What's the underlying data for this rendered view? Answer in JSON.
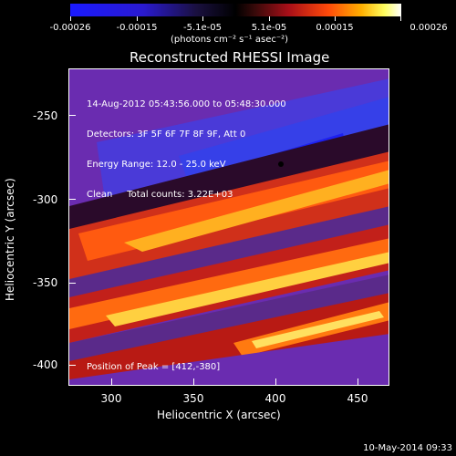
{
  "colorbar": {
    "ticks": [
      "-0.00026",
      "-0.00015",
      "-5.1e-05",
      "5.1e-05",
      "0.00015",
      "0.00026"
    ],
    "unit": "(photons cm⁻² s⁻¹ asec⁻²)"
  },
  "title": "Reconstructed RHESSI Image",
  "info": {
    "time": "14-Aug-2012 05:43:56.000 to 05:48:30.000",
    "detectors": "Detectors: 3F 5F 6F 7F 8F 9F, Att 0",
    "energy": "Energy Range: 12.0 - 25.0 keV",
    "clean": "Clean     Total counts: 3.22E+03"
  },
  "peak": "Position of Peak = [412,-380]",
  "axes": {
    "xlabel": "Heliocentric X (arcsec)",
    "ylabel": "Heliocentric Y (arcsec)",
    "xticks": [
      "300",
      "350",
      "400",
      "450"
    ],
    "yticks": [
      "-250",
      "-300",
      "-350",
      "-400"
    ]
  },
  "timestamp": "10-May-2014 09:33"
}
